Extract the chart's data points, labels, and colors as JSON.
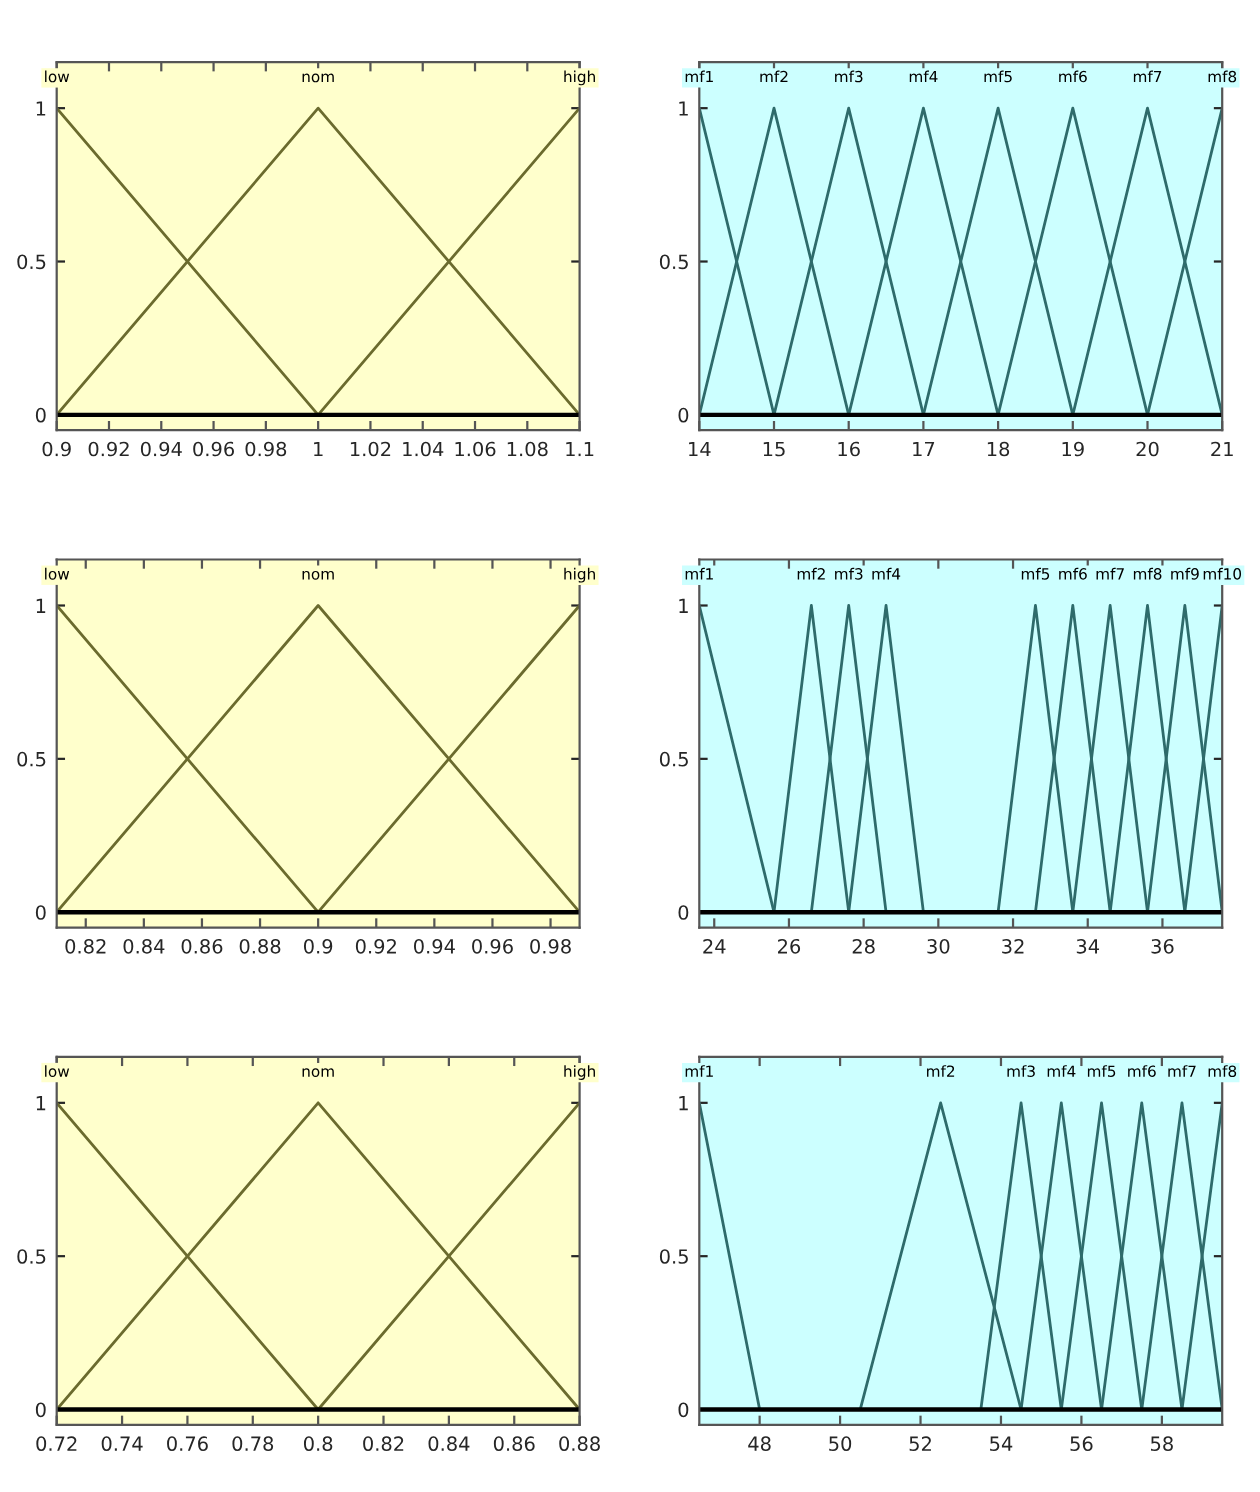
{
  "chart_data": [
    {
      "type": "line",
      "xlim": [
        0.9,
        1.1
      ],
      "xticks": [
        0.9,
        0.92,
        0.94,
        0.96,
        0.98,
        1,
        1.02,
        1.04,
        1.06,
        1.08,
        1.1
      ],
      "ylim": [
        -0.05,
        1.15
      ],
      "yticks": [
        0,
        0.5,
        1
      ],
      "grid": false,
      "legend": false,
      "marker": "none",
      "line_style": "solid",
      "ref_lines": [
        {
          "axis": "y",
          "value": 0,
          "color": "#000000"
        }
      ],
      "series": [
        {
          "name": "low",
          "color": "#6b6b2e",
          "x": [
            0.9,
            1
          ],
          "values": [
            1,
            0
          ]
        },
        {
          "name": "nom",
          "color": "#6b6b2e",
          "x": [
            0.9,
            1,
            1.1
          ],
          "values": [
            0,
            1,
            0
          ]
        },
        {
          "name": "high",
          "color": "#6b6b2e",
          "x": [
            1,
            1.1
          ],
          "values": [
            0,
            1
          ]
        }
      ]
    },
    {
      "type": "line",
      "xlim": [
        14,
        21
      ],
      "xticks": [
        14,
        15,
        16,
        17,
        18,
        19,
        20,
        21
      ],
      "ylim": [
        -0.05,
        1.15
      ],
      "yticks": [
        0,
        0.5,
        1
      ],
      "grid": false,
      "legend": false,
      "marker": "none",
      "line_style": "solid",
      "ref_lines": [
        {
          "axis": "y",
          "value": 0,
          "color": "#000000"
        }
      ],
      "series": [
        {
          "name": "mf1",
          "color": "#2e6b6b",
          "x": [
            14,
            15
          ],
          "values": [
            1,
            0
          ]
        },
        {
          "name": "mf2",
          "color": "#2e6b6b",
          "x": [
            14,
            15,
            16
          ],
          "values": [
            0,
            1,
            0
          ]
        },
        {
          "name": "mf3",
          "color": "#2e6b6b",
          "x": [
            15,
            16,
            17
          ],
          "values": [
            0,
            1,
            0
          ]
        },
        {
          "name": "mf4",
          "color": "#2e6b6b",
          "x": [
            16,
            17,
            18
          ],
          "values": [
            0,
            1,
            0
          ]
        },
        {
          "name": "mf5",
          "color": "#2e6b6b",
          "x": [
            17,
            18,
            19
          ],
          "values": [
            0,
            1,
            0
          ]
        },
        {
          "name": "mf6",
          "color": "#2e6b6b",
          "x": [
            18,
            19,
            20
          ],
          "values": [
            0,
            1,
            0
          ]
        },
        {
          "name": "mf7",
          "color": "#2e6b6b",
          "x": [
            19,
            20,
            21
          ],
          "values": [
            0,
            1,
            0
          ]
        },
        {
          "name": "mf8",
          "color": "#2e6b6b",
          "x": [
            20,
            21
          ],
          "values": [
            0,
            1
          ]
        }
      ]
    },
    {
      "type": "line",
      "xlim": [
        0.81,
        0.99
      ],
      "xticks": [
        0.82,
        0.84,
        0.86,
        0.88,
        0.9,
        0.92,
        0.94,
        0.96,
        0.98
      ],
      "ylim": [
        -0.05,
        1.15
      ],
      "yticks": [
        0,
        0.5,
        1
      ],
      "grid": false,
      "legend": false,
      "marker": "none",
      "line_style": "solid",
      "ref_lines": [
        {
          "axis": "y",
          "value": 0,
          "color": "#000000"
        }
      ],
      "series": [
        {
          "name": "low",
          "color": "#6b6b2e",
          "x": [
            0.81,
            0.9
          ],
          "values": [
            1,
            0
          ]
        },
        {
          "name": "nom",
          "color": "#6b6b2e",
          "x": [
            0.81,
            0.9,
            0.99
          ],
          "values": [
            0,
            1,
            0
          ]
        },
        {
          "name": "high",
          "color": "#6b6b2e",
          "x": [
            0.9,
            0.99
          ],
          "values": [
            0,
            1
          ]
        }
      ]
    },
    {
      "type": "line",
      "xlim": [
        23.6,
        37.6
      ],
      "xticks": [
        24,
        26,
        28,
        30,
        32,
        34,
        36
      ],
      "ylim": [
        -0.05,
        1.15
      ],
      "yticks": [
        0,
        0.5,
        1
      ],
      "grid": false,
      "legend": false,
      "marker": "none",
      "line_style": "solid",
      "ref_lines": [
        {
          "axis": "y",
          "value": 0,
          "color": "#000000"
        }
      ],
      "series": [
        {
          "name": "mf1",
          "color": "#2e6b6b",
          "x": [
            23.6,
            25.6
          ],
          "values": [
            1,
            0
          ]
        },
        {
          "name": "mf2",
          "color": "#2e6b6b",
          "x": [
            25.6,
            26.6,
            27.6
          ],
          "values": [
            0,
            1,
            0
          ]
        },
        {
          "name": "mf3",
          "color": "#2e6b6b",
          "x": [
            26.6,
            27.6,
            28.6
          ],
          "values": [
            0,
            1,
            0
          ]
        },
        {
          "name": "mf4",
          "color": "#2e6b6b",
          "x": [
            27.6,
            28.6,
            29.6
          ],
          "values": [
            0,
            1,
            0
          ]
        },
        {
          "name": "mf5",
          "color": "#2e6b6b",
          "x": [
            31.6,
            32.6,
            33.6
          ],
          "values": [
            0,
            1,
            0
          ]
        },
        {
          "name": "mf6",
          "color": "#2e6b6b",
          "x": [
            32.6,
            33.6,
            34.6
          ],
          "values": [
            0,
            1,
            0
          ]
        },
        {
          "name": "mf7",
          "color": "#2e6b6b",
          "x": [
            33.6,
            34.6,
            35.6
          ],
          "values": [
            0,
            1,
            0
          ]
        },
        {
          "name": "mf8",
          "color": "#2e6b6b",
          "x": [
            34.6,
            35.6,
            36.6
          ],
          "values": [
            0,
            1,
            0
          ]
        },
        {
          "name": "mf9",
          "color": "#2e6b6b",
          "x": [
            35.6,
            36.6,
            37.6
          ],
          "values": [
            0,
            1,
            0
          ]
        },
        {
          "name": "mf10",
          "color": "#2e6b6b",
          "x": [
            36.6,
            37.6
          ],
          "values": [
            0,
            1
          ]
        }
      ]
    },
    {
      "type": "line",
      "xlim": [
        0.72,
        0.88
      ],
      "xticks": [
        0.72,
        0.74,
        0.76,
        0.78,
        0.8,
        0.82,
        0.84,
        0.86,
        0.88
      ],
      "ylim": [
        -0.05,
        1.15
      ],
      "yticks": [
        0,
        0.5,
        1
      ],
      "grid": false,
      "legend": false,
      "marker": "none",
      "line_style": "solid",
      "ref_lines": [
        {
          "axis": "y",
          "value": 0,
          "color": "#000000"
        }
      ],
      "series": [
        {
          "name": "low",
          "color": "#6b6b2e",
          "x": [
            0.72,
            0.8
          ],
          "values": [
            1,
            0
          ]
        },
        {
          "name": "nom",
          "color": "#6b6b2e",
          "x": [
            0.72,
            0.8,
            0.88
          ],
          "values": [
            0,
            1,
            0
          ]
        },
        {
          "name": "high",
          "color": "#6b6b2e",
          "x": [
            0.8,
            0.88
          ],
          "values": [
            0,
            1
          ]
        }
      ]
    },
    {
      "type": "line",
      "xlim": [
        46.5,
        59.5
      ],
      "xticks": [
        48,
        50,
        52,
        54,
        56,
        58
      ],
      "ylim": [
        -0.05,
        1.15
      ],
      "yticks": [
        0,
        0.5,
        1
      ],
      "grid": false,
      "legend": false,
      "marker": "none",
      "line_style": "solid",
      "ref_lines": [
        {
          "axis": "y",
          "value": 0,
          "color": "#000000"
        }
      ],
      "series": [
        {
          "name": "mf1",
          "color": "#2e6b6b",
          "x": [
            46.5,
            48
          ],
          "values": [
            1,
            0
          ]
        },
        {
          "name": "mf2",
          "color": "#2e6b6b",
          "x": [
            50.5,
            52.5,
            54.5
          ],
          "values": [
            0,
            1,
            0
          ]
        },
        {
          "name": "mf3",
          "color": "#2e6b6b",
          "x": [
            53.5,
            54.5,
            55.5
          ],
          "values": [
            0,
            1,
            0
          ]
        },
        {
          "name": "mf4",
          "color": "#2e6b6b",
          "x": [
            54.5,
            55.5,
            56.5
          ],
          "values": [
            0,
            1,
            0
          ]
        },
        {
          "name": "mf5",
          "color": "#2e6b6b",
          "x": [
            55.5,
            56.5,
            57.5
          ],
          "values": [
            0,
            1,
            0
          ]
        },
        {
          "name": "mf6",
          "color": "#2e6b6b",
          "x": [
            56.5,
            57.5,
            58.5
          ],
          "values": [
            0,
            1,
            0
          ]
        },
        {
          "name": "mf7",
          "color": "#2e6b6b",
          "x": [
            57.5,
            58.5,
            59.5
          ],
          "values": [
            0,
            1,
            0
          ]
        },
        {
          "name": "mf8",
          "color": "#2e6b6b",
          "x": [
            58.5,
            59.5
          ],
          "values": [
            0,
            1
          ]
        }
      ]
    }
  ]
}
